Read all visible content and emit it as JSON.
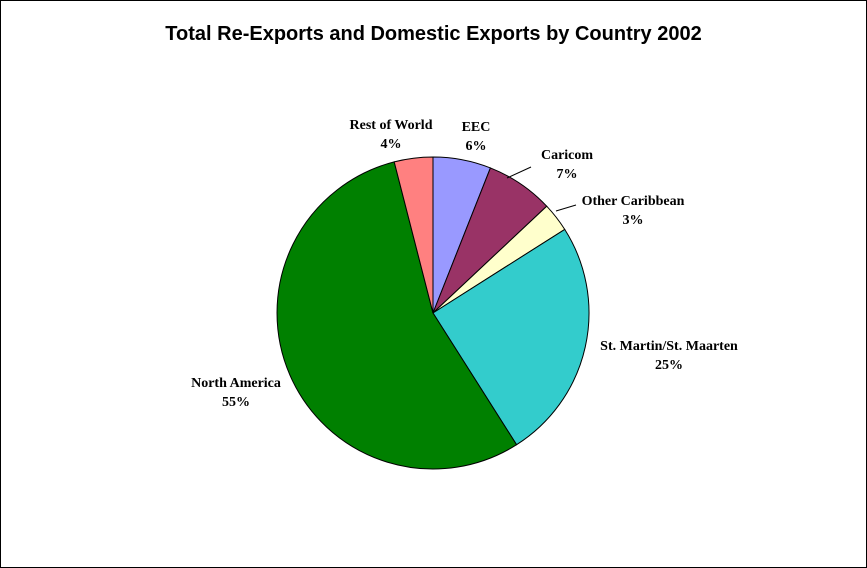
{
  "chart_data": {
    "type": "pie",
    "title": "Total Re-Exports and Domestic Exports by Country 2002",
    "slices": [
      {
        "name": "EEC",
        "value": 6,
        "label": "6%",
        "color": "#9999ff"
      },
      {
        "name": "Caricom",
        "value": 7,
        "label": "7%",
        "color": "#993366"
      },
      {
        "name": "Other Caribbean",
        "value": 3,
        "label": "3%",
        "color": "#ffffcc"
      },
      {
        "name": "St. Martin/St. Maarten",
        "value": 25,
        "label": "25%",
        "color": "#33cccc"
      },
      {
        "name": "North America",
        "value": 55,
        "label": "55%",
        "color": "#008000"
      },
      {
        "name": "Rest of World",
        "value": 4,
        "label": "4%",
        "color": "#ff8080"
      }
    ],
    "start": "12 o'clock",
    "direction": "clockwise",
    "legend": "none"
  }
}
